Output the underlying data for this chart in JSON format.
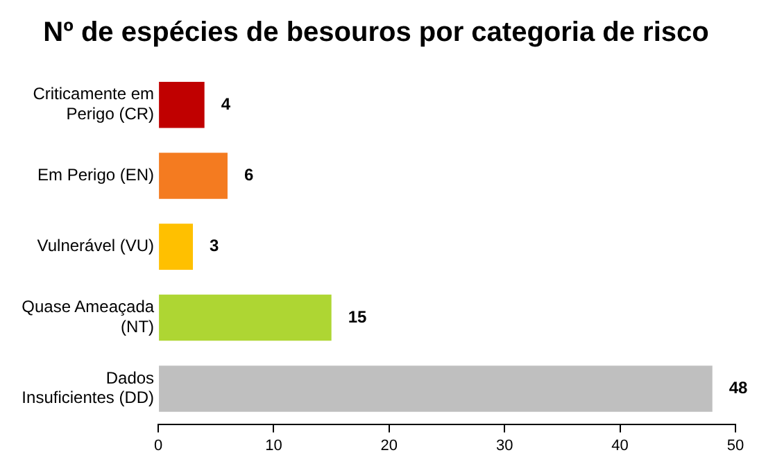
{
  "chart_data": {
    "type": "bar",
    "orientation": "horizontal",
    "title": "Nº de espécies de besouros por categoria de risco",
    "categories": [
      "Criticamente em Perigo (CR)",
      "Em Perigo (EN)",
      "Vulnerável (VU)",
      "Quase Ameaçada (NT)",
      "Dados Insuficientes (DD)"
    ],
    "values": [
      4,
      6,
      3,
      15,
      48
    ],
    "colors": [
      "#c00000",
      "#f47b20",
      "#ffc000",
      "#aed633",
      "#bfbfbf"
    ],
    "xlim": [
      0,
      50
    ],
    "xticks": [
      0,
      10,
      20,
      30,
      40,
      50
    ],
    "grid": false,
    "legend": false,
    "data_labels": true
  }
}
